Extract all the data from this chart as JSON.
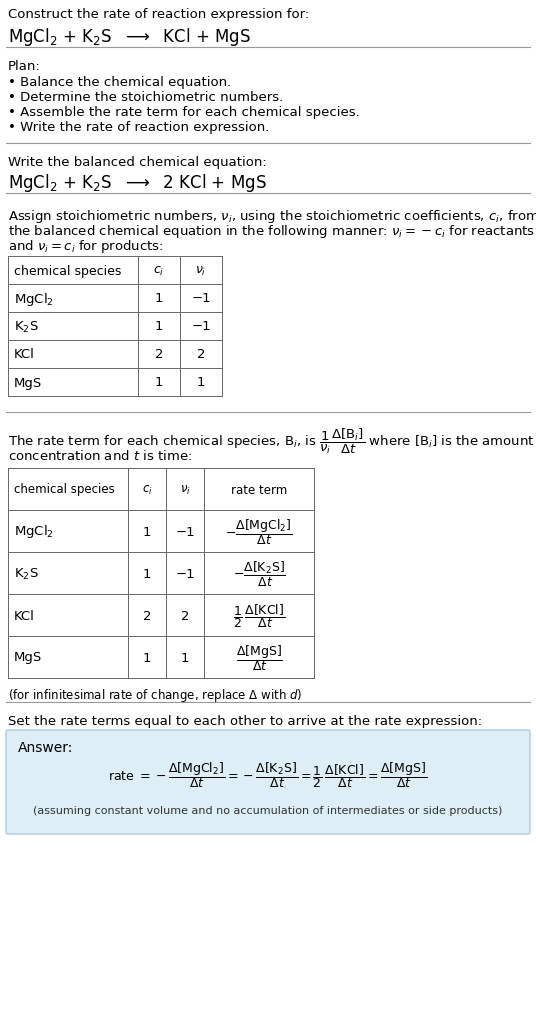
{
  "bg_color": "#ffffff",
  "answer_bg_color": "#ddeef6",
  "answer_border_color": "#aaccdd",
  "text_color": "#000000",
  "section1_title": "Construct the rate of reaction expression for:",
  "plan_title": "Plan:",
  "plan_items": [
    "• Balance the chemical equation.",
    "• Determine the stoichiometric numbers.",
    "• Assemble the rate term for each chemical species.",
    "• Write the rate of reaction expression."
  ],
  "balanced_title": "Write the balanced chemical equation:",
  "table1_headers": [
    "chemical species",
    "$c_i$",
    "$\\nu_i$"
  ],
  "table1_rows": [
    [
      "MgCl$_2$",
      "1",
      "−1"
    ],
    [
      "K$_2$S",
      "1",
      "−1"
    ],
    [
      "KCl",
      "2",
      "2"
    ],
    [
      "MgS",
      "1",
      "1"
    ]
  ],
  "table2_headers": [
    "chemical species",
    "$c_i$",
    "$\\nu_i$",
    "rate term"
  ],
  "table2_rows": [
    [
      "MgCl$_2$",
      "1",
      "−1",
      "$-\\dfrac{\\Delta[\\mathrm{MgCl_2}]}{\\Delta t}$"
    ],
    [
      "K$_2$S",
      "1",
      "−1",
      "$-\\dfrac{\\Delta[\\mathrm{K_2S}]}{\\Delta t}$"
    ],
    [
      "KCl",
      "2",
      "2",
      "$\\dfrac{1}{2}\\,\\dfrac{\\Delta[\\mathrm{KCl}]}{\\Delta t}$"
    ],
    [
      "MgS",
      "1",
      "1",
      "$\\dfrac{\\Delta[\\mathrm{MgS}]}{\\Delta t}$"
    ]
  ],
  "infinitesimal_note": "(for infinitesimal rate of change, replace Δ with $d$)",
  "set_equal_text": "Set the rate terms equal to each other to arrive at the rate expression:",
  "answer_label": "Answer:",
  "answer_note": "(assuming constant volume and no accumulation of intermediates or side products)"
}
